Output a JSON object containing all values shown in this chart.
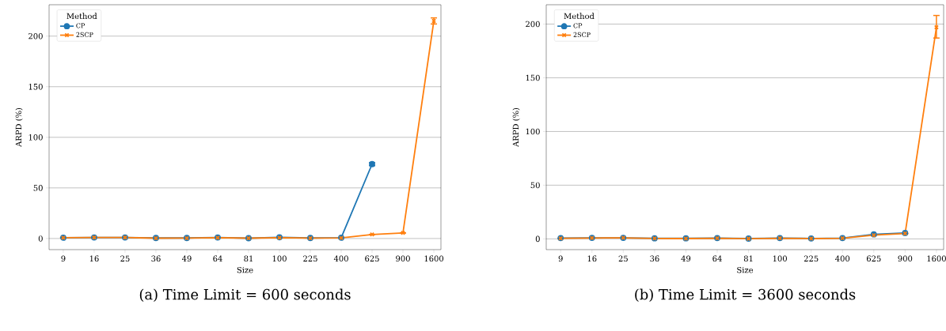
{
  "chart_data": [
    {
      "type": "line",
      "title": "(a) Time Limit = 600 seconds",
      "xlabel": "Size",
      "ylabel": "ARPD (%)",
      "legend_title": "Method",
      "categories": [
        "9",
        "16",
        "25",
        "36",
        "49",
        "64",
        "81",
        "100",
        "225",
        "400",
        "625",
        "900",
        "1600"
      ],
      "series": [
        {
          "name": "CP",
          "color": "#1f77b4",
          "marker": "circle",
          "values": [
            0.8,
            1,
            1,
            0.5,
            0.5,
            1,
            0.3,
            1.2,
            0.5,
            0.8,
            73.5,
            null,
            null
          ],
          "errors": [
            null,
            null,
            null,
            null,
            null,
            null,
            null,
            null,
            null,
            null,
            1.5,
            null,
            null
          ]
        },
        {
          "name": "2SCP",
          "color": "#ff7f0e",
          "marker": "cross",
          "values": [
            0.8,
            1,
            1,
            0.3,
            0.4,
            0.8,
            0.3,
            0.8,
            0.4,
            0.6,
            4,
            5.5,
            215
          ],
          "errors": [
            null,
            null,
            null,
            null,
            null,
            null,
            null,
            null,
            null,
            null,
            null,
            null,
            3
          ]
        }
      ],
      "ylim": [
        -11,
        231
      ],
      "yticks": [
        0,
        50,
        100,
        150,
        200
      ],
      "grid": "y",
      "legend": "top left",
      "line_style": "solid"
    },
    {
      "type": "line",
      "title": "(b) Time Limit = 3600 seconds",
      "xlabel": "Size",
      "ylabel": "ARPD (%)",
      "legend_title": "Method",
      "categories": [
        "9",
        "16",
        "25",
        "36",
        "49",
        "64",
        "81",
        "100",
        "225",
        "400",
        "625",
        "900",
        "1600"
      ],
      "series": [
        {
          "name": "CP",
          "color": "#1f77b4",
          "marker": "circle",
          "values": [
            0.8,
            1,
            1,
            0.5,
            0.5,
            0.8,
            0.3,
            0.8,
            0.4,
            0.8,
            4.2,
            5.5,
            null
          ]
        },
        {
          "name": "2SCP",
          "color": "#ff7f0e",
          "marker": "cross",
          "values": [
            0.5,
            0.8,
            1,
            0.4,
            0.3,
            0.6,
            0.2,
            0.6,
            0.3,
            0.6,
            3.5,
            5,
            197
          ],
          "errors": [
            null,
            null,
            null,
            null,
            null,
            null,
            null,
            null,
            null,
            null,
            null,
            null,
            [
              187,
              208
            ]
          ]
        }
      ],
      "ylim": [
        -10,
        218
      ],
      "yticks": [
        0,
        50,
        100,
        150,
        200
      ],
      "grid": "y",
      "legend": "top left",
      "line_style": "solid"
    }
  ]
}
